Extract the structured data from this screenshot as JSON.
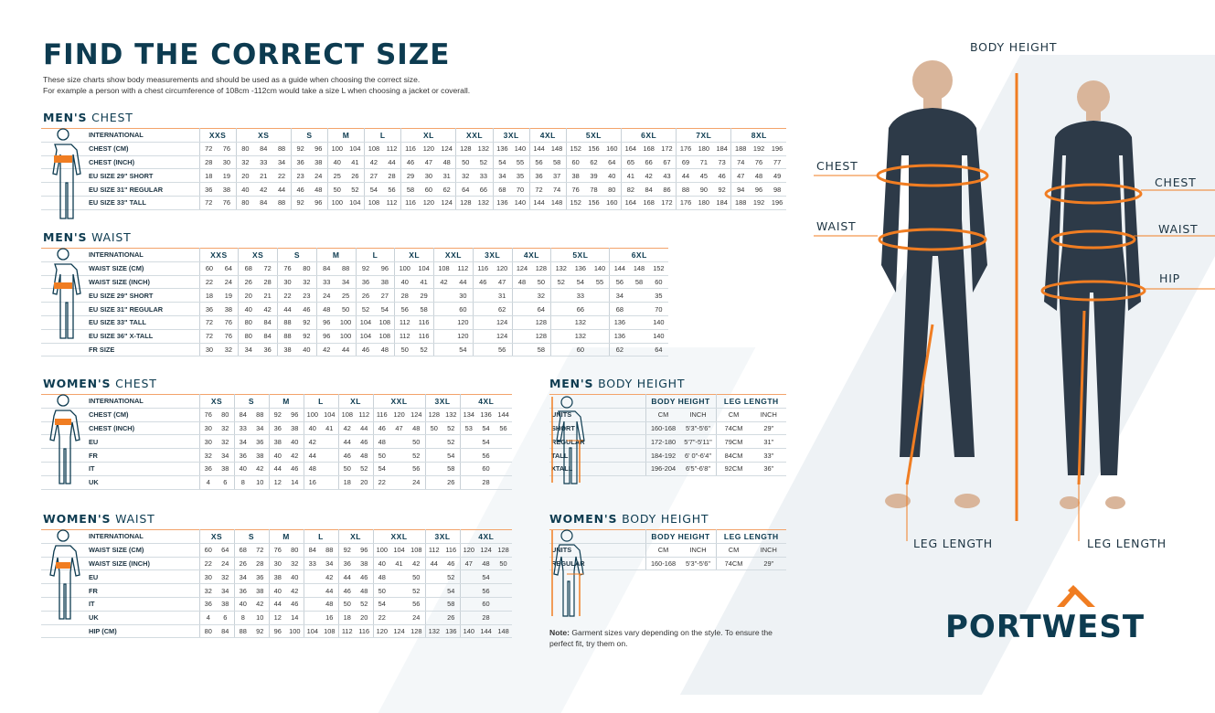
{
  "header": {
    "title": "FIND THE CORRECT SIZE",
    "intro_1": "These size charts show body measurements and should be used as a guide when choosing the correct size.",
    "intro_2": "For example a person with a chest circumference of 108cm -112cm would take a size L when choosing a jacket or coverall."
  },
  "colors": {
    "navy": "#0d3b50",
    "orange": "#f07d22"
  },
  "men_chest": {
    "title_bold": "MEN'S",
    "title_rest": "CHEST",
    "head_label": "INTERNATIONAL",
    "groups": [
      [
        "XXS",
        2
      ],
      [
        "XS",
        3
      ],
      [
        "S",
        2
      ],
      [
        "M",
        2
      ],
      [
        "L",
        2
      ],
      [
        "XL",
        3
      ],
      [
        "XXL",
        2
      ],
      [
        "3XL",
        2
      ],
      [
        "4XL",
        2
      ],
      [
        "5XL",
        3
      ],
      [
        "6XL",
        3
      ],
      [
        "7XL",
        3
      ],
      [
        "8XL",
        3
      ]
    ],
    "rows": [
      {
        "label": "CHEST (CM)",
        "values": [
          "72",
          "76",
          "80",
          "84",
          "88",
          "92",
          "96",
          "100",
          "104",
          "108",
          "112",
          "116",
          "120",
          "124",
          "128",
          "132",
          "136",
          "140",
          "144",
          "148",
          "152",
          "156",
          "160",
          "164",
          "168",
          "172",
          "176",
          "180",
          "184",
          "188",
          "192",
          "196"
        ]
      },
      {
        "label": "CHEST (INCH)",
        "values": [
          "28",
          "30",
          "32",
          "33",
          "34",
          "36",
          "38",
          "40",
          "41",
          "42",
          "44",
          "46",
          "47",
          "48",
          "50",
          "52",
          "54",
          "55",
          "56",
          "58",
          "60",
          "62",
          "64",
          "65",
          "66",
          "67",
          "69",
          "71",
          "73",
          "74",
          "76",
          "77"
        ]
      },
      {
        "label": "EU SIZE 29\" SHORT",
        "values": [
          "18",
          "19",
          "20",
          "21",
          "22",
          "23",
          "24",
          "25",
          "26",
          "27",
          "28",
          "29",
          "30",
          "31",
          "32",
          "33",
          "34",
          "35",
          "36",
          "37",
          "38",
          "39",
          "40",
          "41",
          "42",
          "43",
          "44",
          "45",
          "46",
          "47",
          "48",
          "49"
        ]
      },
      {
        "label": "EU SIZE 31\" REGULAR",
        "values": [
          "36",
          "38",
          "40",
          "42",
          "44",
          "46",
          "48",
          "50",
          "52",
          "54",
          "56",
          "58",
          "60",
          "62",
          "64",
          "66",
          "68",
          "70",
          "72",
          "74",
          "76",
          "78",
          "80",
          "82",
          "84",
          "86",
          "88",
          "90",
          "92",
          "94",
          "96",
          "98"
        ]
      },
      {
        "label": "EU SIZE 33\" TALL",
        "values": [
          "72",
          "76",
          "80",
          "84",
          "88",
          "92",
          "96",
          "100",
          "104",
          "108",
          "112",
          "116",
          "120",
          "124",
          "128",
          "132",
          "136",
          "140",
          "144",
          "148",
          "152",
          "156",
          "160",
          "164",
          "168",
          "172",
          "176",
          "180",
          "184",
          "188",
          "192",
          "196"
        ]
      }
    ]
  },
  "men_waist": {
    "title_bold": "MEN'S",
    "title_rest": "WAIST",
    "head_label": "INTERNATIONAL",
    "groups": [
      [
        "XXS",
        2
      ],
      [
        "XS",
        2
      ],
      [
        "S",
        2
      ],
      [
        "M",
        2
      ],
      [
        "L",
        2
      ],
      [
        "XL",
        2
      ],
      [
        "XXL",
        2
      ],
      [
        "3XL",
        2
      ],
      [
        "4XL",
        2
      ],
      [
        "5XL",
        3
      ],
      [
        "6XL",
        3
      ]
    ],
    "rows": [
      {
        "label": "WAIST SIZE (CM)",
        "values": [
          "60",
          "64",
          "68",
          "72",
          "76",
          "80",
          "84",
          "88",
          "92",
          "96",
          "100",
          "104",
          "108",
          "112",
          "116",
          "120",
          "124",
          "128",
          "132",
          "136",
          "140",
          "144",
          "148",
          "152"
        ]
      },
      {
        "label": "WAIST SIZE (INCH)",
        "values": [
          "22",
          "24",
          "26",
          "28",
          "30",
          "32",
          "33",
          "34",
          "36",
          "38",
          "40",
          "41",
          "42",
          "44",
          "46",
          "47",
          "48",
          "50",
          "52",
          "54",
          "55",
          "56",
          "58",
          "60"
        ]
      },
      {
        "label": "EU SIZE 29\" SHORT",
        "values": [
          "18",
          "19",
          "20",
          "21",
          "22",
          "23",
          "24",
          "25",
          "26",
          "27",
          "28",
          "29",
          "",
          "30",
          "",
          "31",
          "",
          "32",
          "",
          "33",
          "",
          "34",
          "",
          "35"
        ]
      },
      {
        "label": "EU SIZE 31\" REGULAR",
        "values": [
          "36",
          "38",
          "40",
          "42",
          "44",
          "46",
          "48",
          "50",
          "52",
          "54",
          "56",
          "58",
          "",
          "60",
          "",
          "62",
          "",
          "64",
          "",
          "66",
          "",
          "68",
          "",
          "70"
        ]
      },
      {
        "label": "EU SIZE 33\" TALL",
        "values": [
          "72",
          "76",
          "80",
          "84",
          "88",
          "92",
          "96",
          "100",
          "104",
          "108",
          "112",
          "116",
          "",
          "120",
          "",
          "124",
          "",
          "128",
          "",
          "132",
          "",
          "136",
          "",
          "140"
        ]
      },
      {
        "label": "EU SIZE 36\" X-TALL",
        "values": [
          "72",
          "76",
          "80",
          "84",
          "88",
          "92",
          "96",
          "100",
          "104",
          "108",
          "112",
          "116",
          "",
          "120",
          "",
          "124",
          "",
          "128",
          "",
          "132",
          "",
          "136",
          "",
          "140"
        ]
      },
      {
        "label": "FR SIZE",
        "values": [
          "30",
          "32",
          "34",
          "36",
          "38",
          "40",
          "42",
          "44",
          "46",
          "48",
          "50",
          "52",
          "",
          "54",
          "",
          "56",
          "",
          "58",
          "",
          "60",
          "",
          "62",
          "",
          "64"
        ]
      }
    ]
  },
  "women_chest": {
    "title_bold": "WOMEN'S",
    "title_rest": "CHEST",
    "head_label": "INTERNATIONAL",
    "groups": [
      [
        "XS",
        2
      ],
      [
        "S",
        2
      ],
      [
        "M",
        2
      ],
      [
        "L",
        2
      ],
      [
        "XL",
        2
      ],
      [
        "XXL",
        3
      ],
      [
        "3XL",
        2
      ],
      [
        "4XL",
        3
      ]
    ],
    "rows": [
      {
        "label": "CHEST (CM)",
        "values": [
          "76",
          "80",
          "84",
          "88",
          "92",
          "96",
          "100",
          "104",
          "108",
          "112",
          "116",
          "120",
          "124",
          "128",
          "132",
          "134",
          "136",
          "144"
        ]
      },
      {
        "label": "CHEST (INCH)",
        "values": [
          "30",
          "32",
          "33",
          "34",
          "36",
          "38",
          "40",
          "41",
          "42",
          "44",
          "46",
          "47",
          "48",
          "50",
          "52",
          "53",
          "54",
          "56"
        ]
      },
      {
        "label": "EU",
        "values": [
          "30",
          "32",
          "34",
          "36",
          "38",
          "40",
          "42",
          "",
          "44",
          "46",
          "48",
          "",
          "50",
          "",
          "52",
          "",
          "54",
          ""
        ]
      },
      {
        "label": "FR",
        "values": [
          "32",
          "34",
          "36",
          "38",
          "40",
          "42",
          "44",
          "",
          "46",
          "48",
          "50",
          "",
          "52",
          "",
          "54",
          "",
          "56",
          ""
        ]
      },
      {
        "label": "IT",
        "values": [
          "36",
          "38",
          "40",
          "42",
          "44",
          "46",
          "48",
          "",
          "50",
          "52",
          "54",
          "",
          "56",
          "",
          "58",
          "",
          "60",
          ""
        ]
      },
      {
        "label": "UK",
        "values": [
          "4",
          "6",
          "8",
          "10",
          "12",
          "14",
          "16",
          "",
          "18",
          "20",
          "22",
          "",
          "24",
          "",
          "26",
          "",
          "28",
          ""
        ]
      }
    ]
  },
  "women_waist": {
    "title_bold": "WOMEN'S",
    "title_rest": "WAIST",
    "head_label": "INTERNATIONAL",
    "groups": [
      [
        "XS",
        2
      ],
      [
        "S",
        2
      ],
      [
        "M",
        2
      ],
      [
        "L",
        2
      ],
      [
        "XL",
        2
      ],
      [
        "XXL",
        3
      ],
      [
        "3XL",
        2
      ],
      [
        "4XL",
        3
      ]
    ],
    "rows": [
      {
        "label": "WAIST SIZE (CM)",
        "values": [
          "60",
          "64",
          "68",
          "72",
          "76",
          "80",
          "84",
          "88",
          "92",
          "96",
          "100",
          "104",
          "108",
          "112",
          "116",
          "120",
          "124",
          "128"
        ]
      },
      {
        "label": "WAIST SIZE (INCH)",
        "values": [
          "22",
          "24",
          "26",
          "28",
          "30",
          "32",
          "33",
          "34",
          "36",
          "38",
          "40",
          "41",
          "42",
          "44",
          "46",
          "47",
          "48",
          "50"
        ]
      },
      {
        "label": "EU",
        "values": [
          "30",
          "32",
          "34",
          "36",
          "38",
          "40",
          "",
          "42",
          "44",
          "46",
          "48",
          "",
          "50",
          "",
          "52",
          "",
          "54",
          ""
        ]
      },
      {
        "label": "FR",
        "values": [
          "32",
          "34",
          "36",
          "38",
          "40",
          "42",
          "",
          "44",
          "46",
          "48",
          "50",
          "",
          "52",
          "",
          "54",
          "",
          "56",
          ""
        ]
      },
      {
        "label": "IT",
        "values": [
          "36",
          "38",
          "40",
          "42",
          "44",
          "46",
          "",
          "48",
          "50",
          "52",
          "54",
          "",
          "56",
          "",
          "58",
          "",
          "60",
          ""
        ]
      },
      {
        "label": "UK",
        "values": [
          "4",
          "6",
          "8",
          "10",
          "12",
          "14",
          "",
          "16",
          "18",
          "20",
          "22",
          "",
          "24",
          "",
          "26",
          "",
          "28",
          ""
        ]
      },
      {
        "label": "HIP (CM)",
        "values": [
          "80",
          "84",
          "88",
          "92",
          "96",
          "100",
          "104",
          "108",
          "112",
          "116",
          "120",
          "124",
          "128",
          "132",
          "136",
          "140",
          "144",
          "148"
        ]
      }
    ]
  },
  "men_height": {
    "title_bold": "MEN'S",
    "title_rest": "BODY HEIGHT",
    "head_label": "",
    "groups": [
      [
        "BODY HEIGHT",
        2
      ],
      [
        "LEG LENGTH",
        2
      ]
    ],
    "rows": [
      {
        "label": "UNITS",
        "values": [
          "CM",
          "INCH",
          "CM",
          "INCH"
        ]
      },
      {
        "label": "SHORT",
        "values": [
          "160-168",
          "5'3\"-5'6\"",
          "74CM",
          "29\""
        ]
      },
      {
        "label": "REGULAR",
        "values": [
          "172-180",
          "5'7\"-5'11\"",
          "79CM",
          "31\""
        ]
      },
      {
        "label": "TALL",
        "values": [
          "184-192",
          "6' 0\"-6'4\"",
          "84CM",
          "33\""
        ]
      },
      {
        "label": "XTALL",
        "values": [
          "196-204",
          "6'5\"-6'8\"",
          "92CM",
          "36\""
        ]
      }
    ]
  },
  "women_height": {
    "title_bold": "WOMEN'S",
    "title_rest": "BODY HEIGHT",
    "head_label": "",
    "groups": [
      [
        "BODY HEIGHT",
        2
      ],
      [
        "LEG LENGTH",
        2
      ]
    ],
    "rows": [
      {
        "label": "UNITS",
        "values": [
          "CM",
          "INCH",
          "CM",
          "INCH"
        ]
      },
      {
        "label": "REGULAR",
        "values": [
          "160-168",
          "5'3\"-5'6\"",
          "74CM",
          "29\""
        ]
      }
    ]
  },
  "note": {
    "bold": "Note:",
    "text": " Garment sizes vary depending on the style. To ensure the perfect fit, try them on."
  },
  "diagram": {
    "body_height": "BODY HEIGHT",
    "chest": "CHEST",
    "waist": "WAIST",
    "hip": "HIP",
    "leg_length": "LEG LENGTH"
  },
  "logo": {
    "text": "PORTWEST"
  }
}
